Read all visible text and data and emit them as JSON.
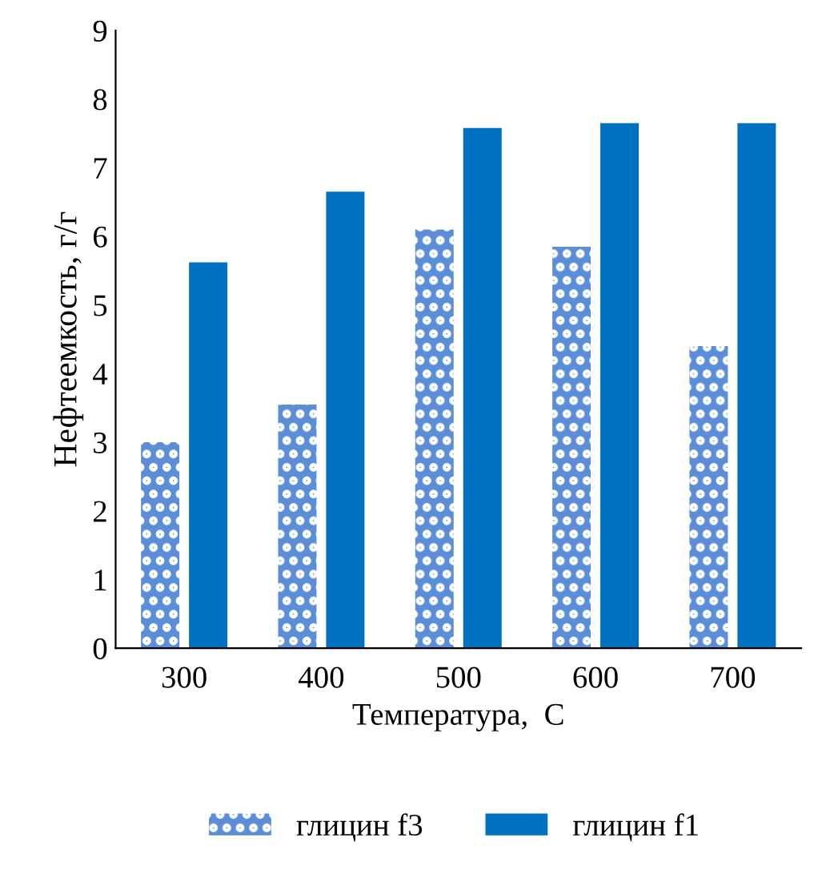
{
  "chart_data": {
    "type": "bar",
    "categories": [
      "300",
      "400",
      "500",
      "600",
      "700"
    ],
    "series": [
      {
        "name": "глицин f3",
        "color": "#5b8ed6",
        "values": [
          3.0,
          3.55,
          6.1,
          5.85,
          4.4
        ]
      },
      {
        "name": "глицин f1",
        "color": "#0070c0",
        "values": [
          5.62,
          6.65,
          7.58,
          7.65,
          7.65
        ]
      }
    ],
    "xlabel": "Температура,  С",
    "ylabel": "Нефтеемкость, г/г",
    "ylim": [
      0,
      9
    ],
    "yticks": [
      0,
      1,
      2,
      3,
      4,
      5,
      6,
      7,
      8,
      9
    ],
    "grid": false,
    "legend": "bottom"
  }
}
